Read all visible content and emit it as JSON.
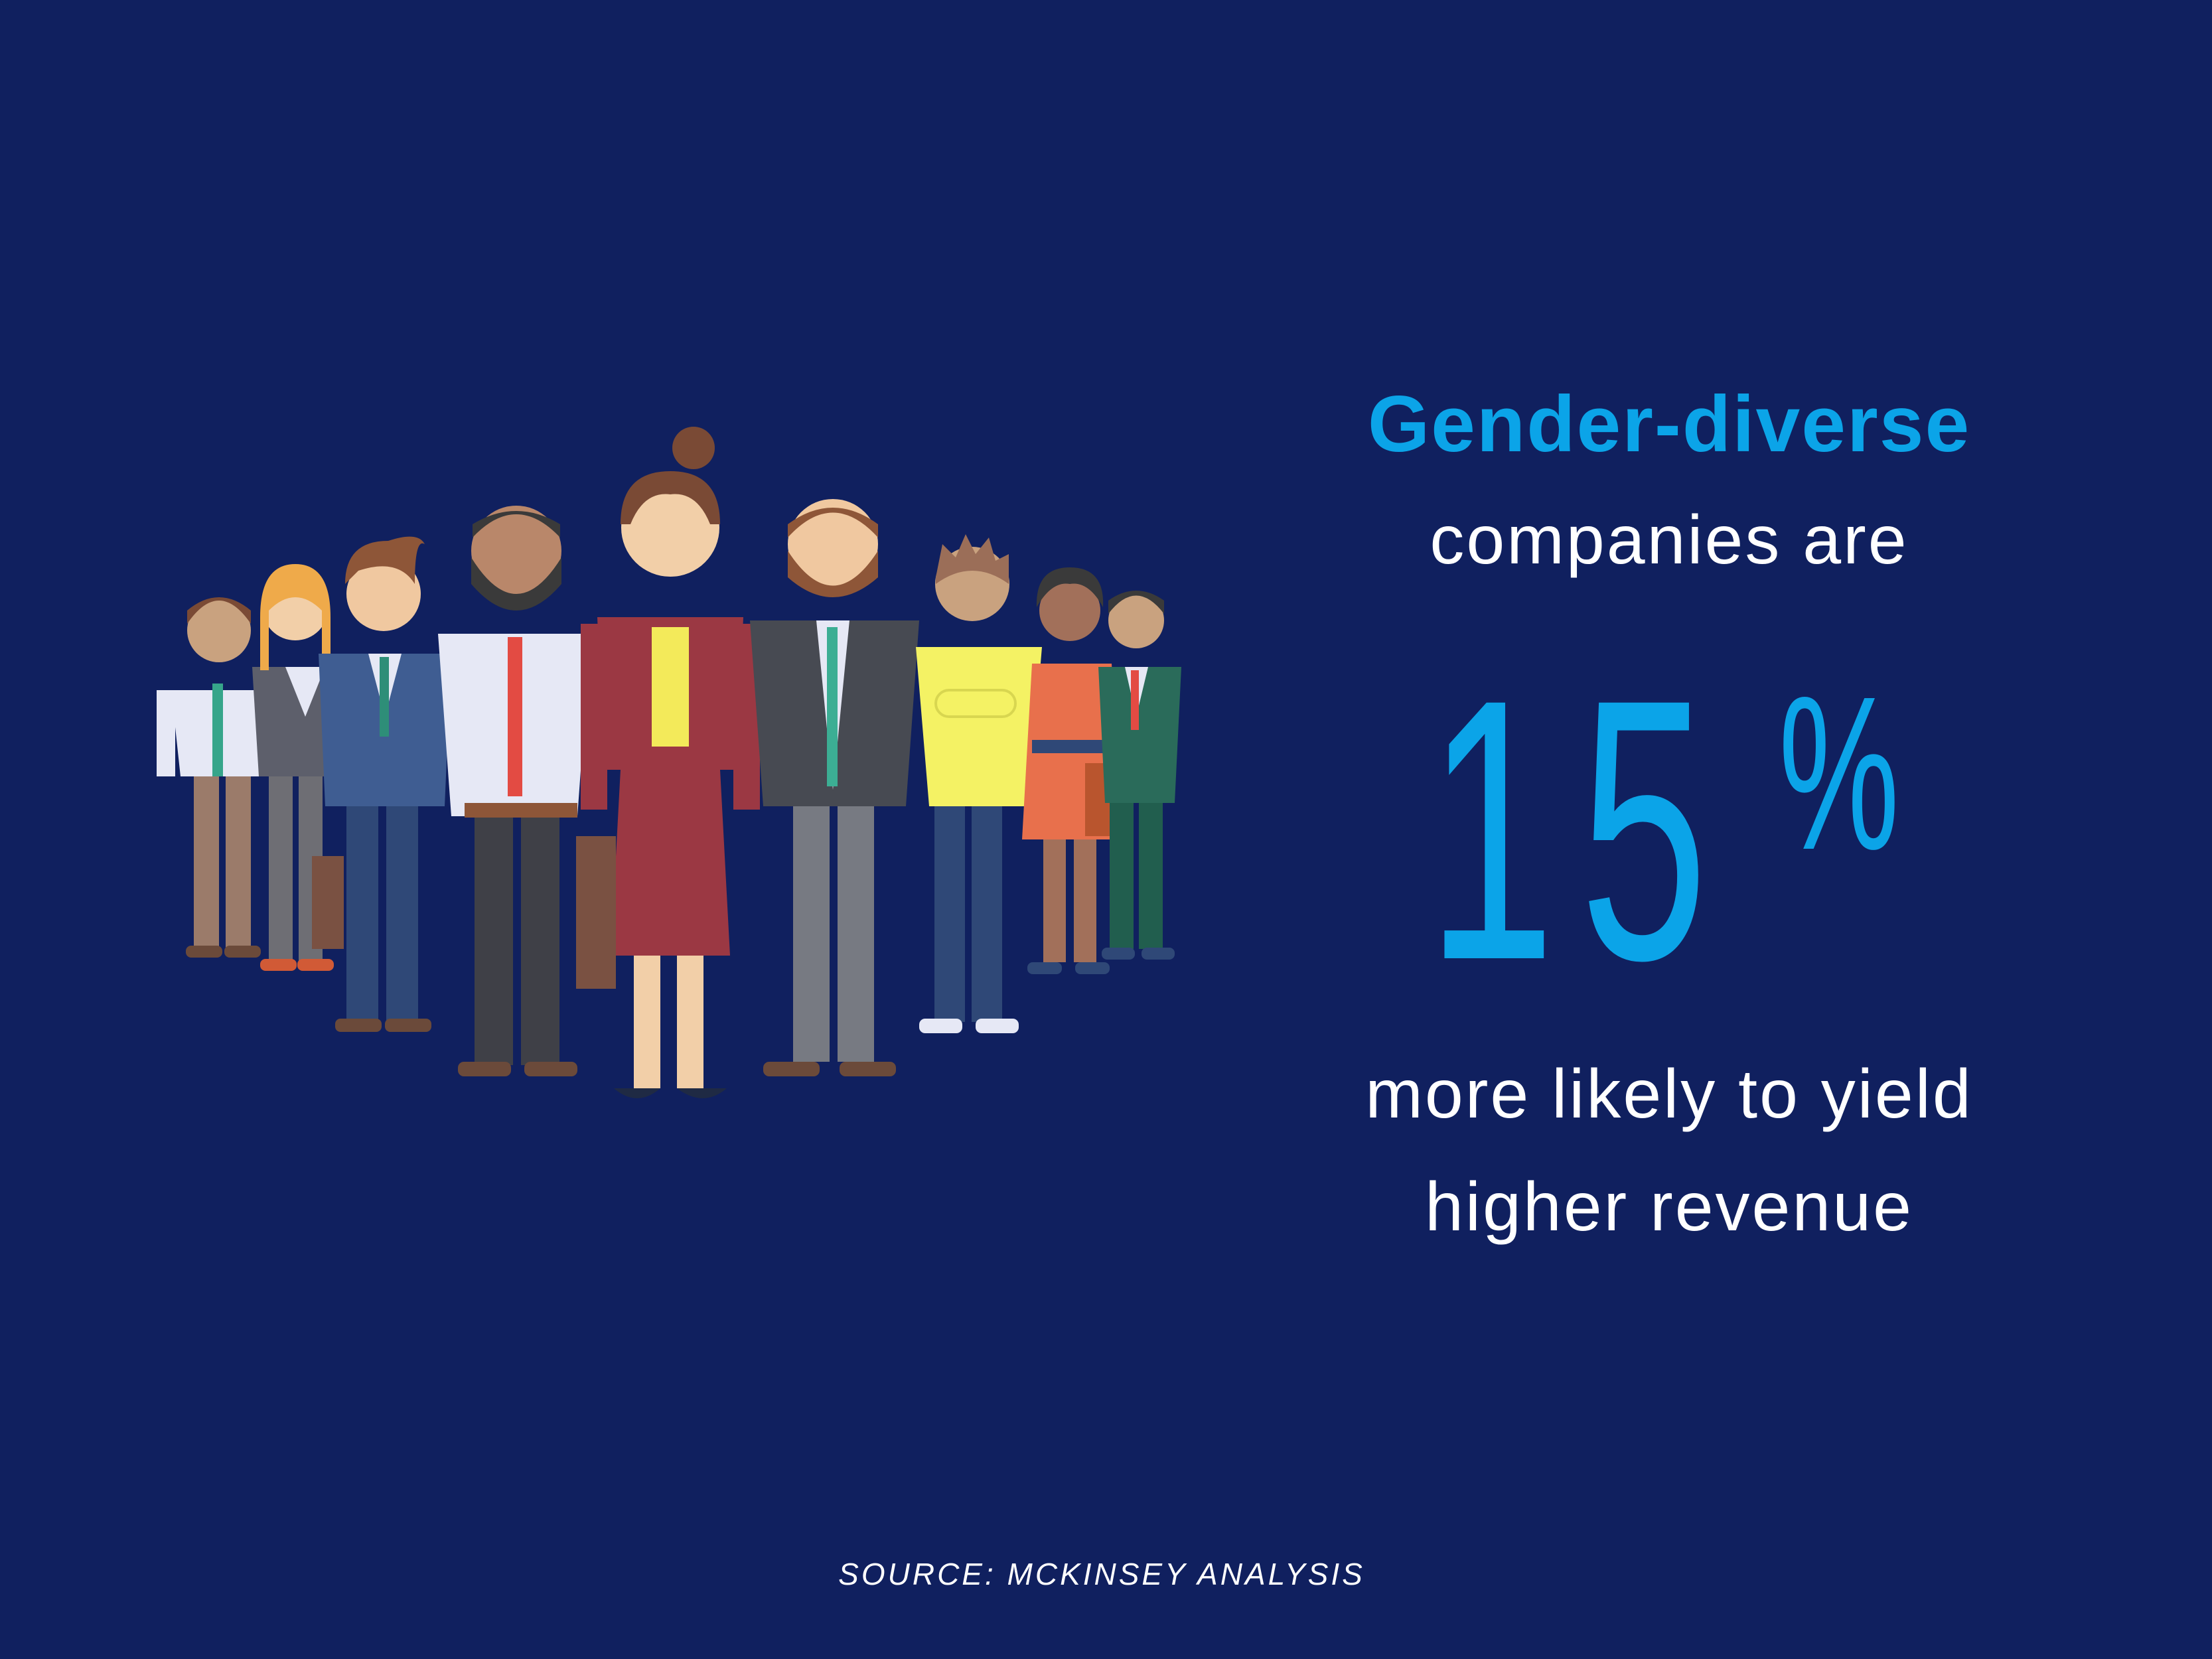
{
  "headline": {
    "accent": "Gender-diverse",
    "line1": "companies are",
    "number": "15",
    "unit": "%",
    "line2": "more likely to yield",
    "line3": "higher revenue"
  },
  "source": "SOURCE: MCKINSEY ANALYSIS",
  "colors": {
    "background": "#10205f",
    "accent": "#0ba4e8",
    "text": "#ffffff"
  },
  "illustration": {
    "icon": "diverse-team-people-illustration",
    "people_count": 9
  }
}
